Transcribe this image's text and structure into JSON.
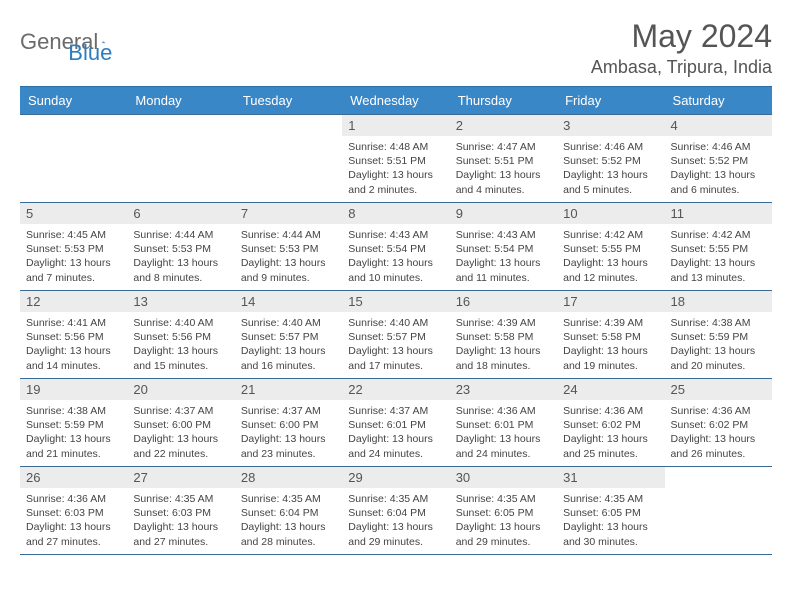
{
  "logo": {
    "part1": "General",
    "part2": "Blue"
  },
  "title": "May 2024",
  "location": "Ambasa, Tripura, India",
  "colors": {
    "header_bg": "#3a87c8",
    "header_text": "#ffffff",
    "row_border": "#3a6a95",
    "daynum_bg": "#ececec",
    "logo_gray": "#6b6b6b",
    "logo_blue": "#2e7cc0"
  },
  "weekdays": [
    "Sunday",
    "Monday",
    "Tuesday",
    "Wednesday",
    "Thursday",
    "Friday",
    "Saturday"
  ],
  "weeks": [
    [
      null,
      null,
      null,
      {
        "n": "1",
        "sr": "4:48 AM",
        "ss": "5:51 PM",
        "dl": "13 hours and 2 minutes."
      },
      {
        "n": "2",
        "sr": "4:47 AM",
        "ss": "5:51 PM",
        "dl": "13 hours and 4 minutes."
      },
      {
        "n": "3",
        "sr": "4:46 AM",
        "ss": "5:52 PM",
        "dl": "13 hours and 5 minutes."
      },
      {
        "n": "4",
        "sr": "4:46 AM",
        "ss": "5:52 PM",
        "dl": "13 hours and 6 minutes."
      }
    ],
    [
      {
        "n": "5",
        "sr": "4:45 AM",
        "ss": "5:53 PM",
        "dl": "13 hours and 7 minutes."
      },
      {
        "n": "6",
        "sr": "4:44 AM",
        "ss": "5:53 PM",
        "dl": "13 hours and 8 minutes."
      },
      {
        "n": "7",
        "sr": "4:44 AM",
        "ss": "5:53 PM",
        "dl": "13 hours and 9 minutes."
      },
      {
        "n": "8",
        "sr": "4:43 AM",
        "ss": "5:54 PM",
        "dl": "13 hours and 10 minutes."
      },
      {
        "n": "9",
        "sr": "4:43 AM",
        "ss": "5:54 PM",
        "dl": "13 hours and 11 minutes."
      },
      {
        "n": "10",
        "sr": "4:42 AM",
        "ss": "5:55 PM",
        "dl": "13 hours and 12 minutes."
      },
      {
        "n": "11",
        "sr": "4:42 AM",
        "ss": "5:55 PM",
        "dl": "13 hours and 13 minutes."
      }
    ],
    [
      {
        "n": "12",
        "sr": "4:41 AM",
        "ss": "5:56 PM",
        "dl": "13 hours and 14 minutes."
      },
      {
        "n": "13",
        "sr": "4:40 AM",
        "ss": "5:56 PM",
        "dl": "13 hours and 15 minutes."
      },
      {
        "n": "14",
        "sr": "4:40 AM",
        "ss": "5:57 PM",
        "dl": "13 hours and 16 minutes."
      },
      {
        "n": "15",
        "sr": "4:40 AM",
        "ss": "5:57 PM",
        "dl": "13 hours and 17 minutes."
      },
      {
        "n": "16",
        "sr": "4:39 AM",
        "ss": "5:58 PM",
        "dl": "13 hours and 18 minutes."
      },
      {
        "n": "17",
        "sr": "4:39 AM",
        "ss": "5:58 PM",
        "dl": "13 hours and 19 minutes."
      },
      {
        "n": "18",
        "sr": "4:38 AM",
        "ss": "5:59 PM",
        "dl": "13 hours and 20 minutes."
      }
    ],
    [
      {
        "n": "19",
        "sr": "4:38 AM",
        "ss": "5:59 PM",
        "dl": "13 hours and 21 minutes."
      },
      {
        "n": "20",
        "sr": "4:37 AM",
        "ss": "6:00 PM",
        "dl": "13 hours and 22 minutes."
      },
      {
        "n": "21",
        "sr": "4:37 AM",
        "ss": "6:00 PM",
        "dl": "13 hours and 23 minutes."
      },
      {
        "n": "22",
        "sr": "4:37 AM",
        "ss": "6:01 PM",
        "dl": "13 hours and 24 minutes."
      },
      {
        "n": "23",
        "sr": "4:36 AM",
        "ss": "6:01 PM",
        "dl": "13 hours and 24 minutes."
      },
      {
        "n": "24",
        "sr": "4:36 AM",
        "ss": "6:02 PM",
        "dl": "13 hours and 25 minutes."
      },
      {
        "n": "25",
        "sr": "4:36 AM",
        "ss": "6:02 PM",
        "dl": "13 hours and 26 minutes."
      }
    ],
    [
      {
        "n": "26",
        "sr": "4:36 AM",
        "ss": "6:03 PM",
        "dl": "13 hours and 27 minutes."
      },
      {
        "n": "27",
        "sr": "4:35 AM",
        "ss": "6:03 PM",
        "dl": "13 hours and 27 minutes."
      },
      {
        "n": "28",
        "sr": "4:35 AM",
        "ss": "6:04 PM",
        "dl": "13 hours and 28 minutes."
      },
      {
        "n": "29",
        "sr": "4:35 AM",
        "ss": "6:04 PM",
        "dl": "13 hours and 29 minutes."
      },
      {
        "n": "30",
        "sr": "4:35 AM",
        "ss": "6:05 PM",
        "dl": "13 hours and 29 minutes."
      },
      {
        "n": "31",
        "sr": "4:35 AM",
        "ss": "6:05 PM",
        "dl": "13 hours and 30 minutes."
      },
      null
    ]
  ],
  "labels": {
    "sunrise": "Sunrise:",
    "sunset": "Sunset:",
    "daylight": "Daylight:"
  }
}
